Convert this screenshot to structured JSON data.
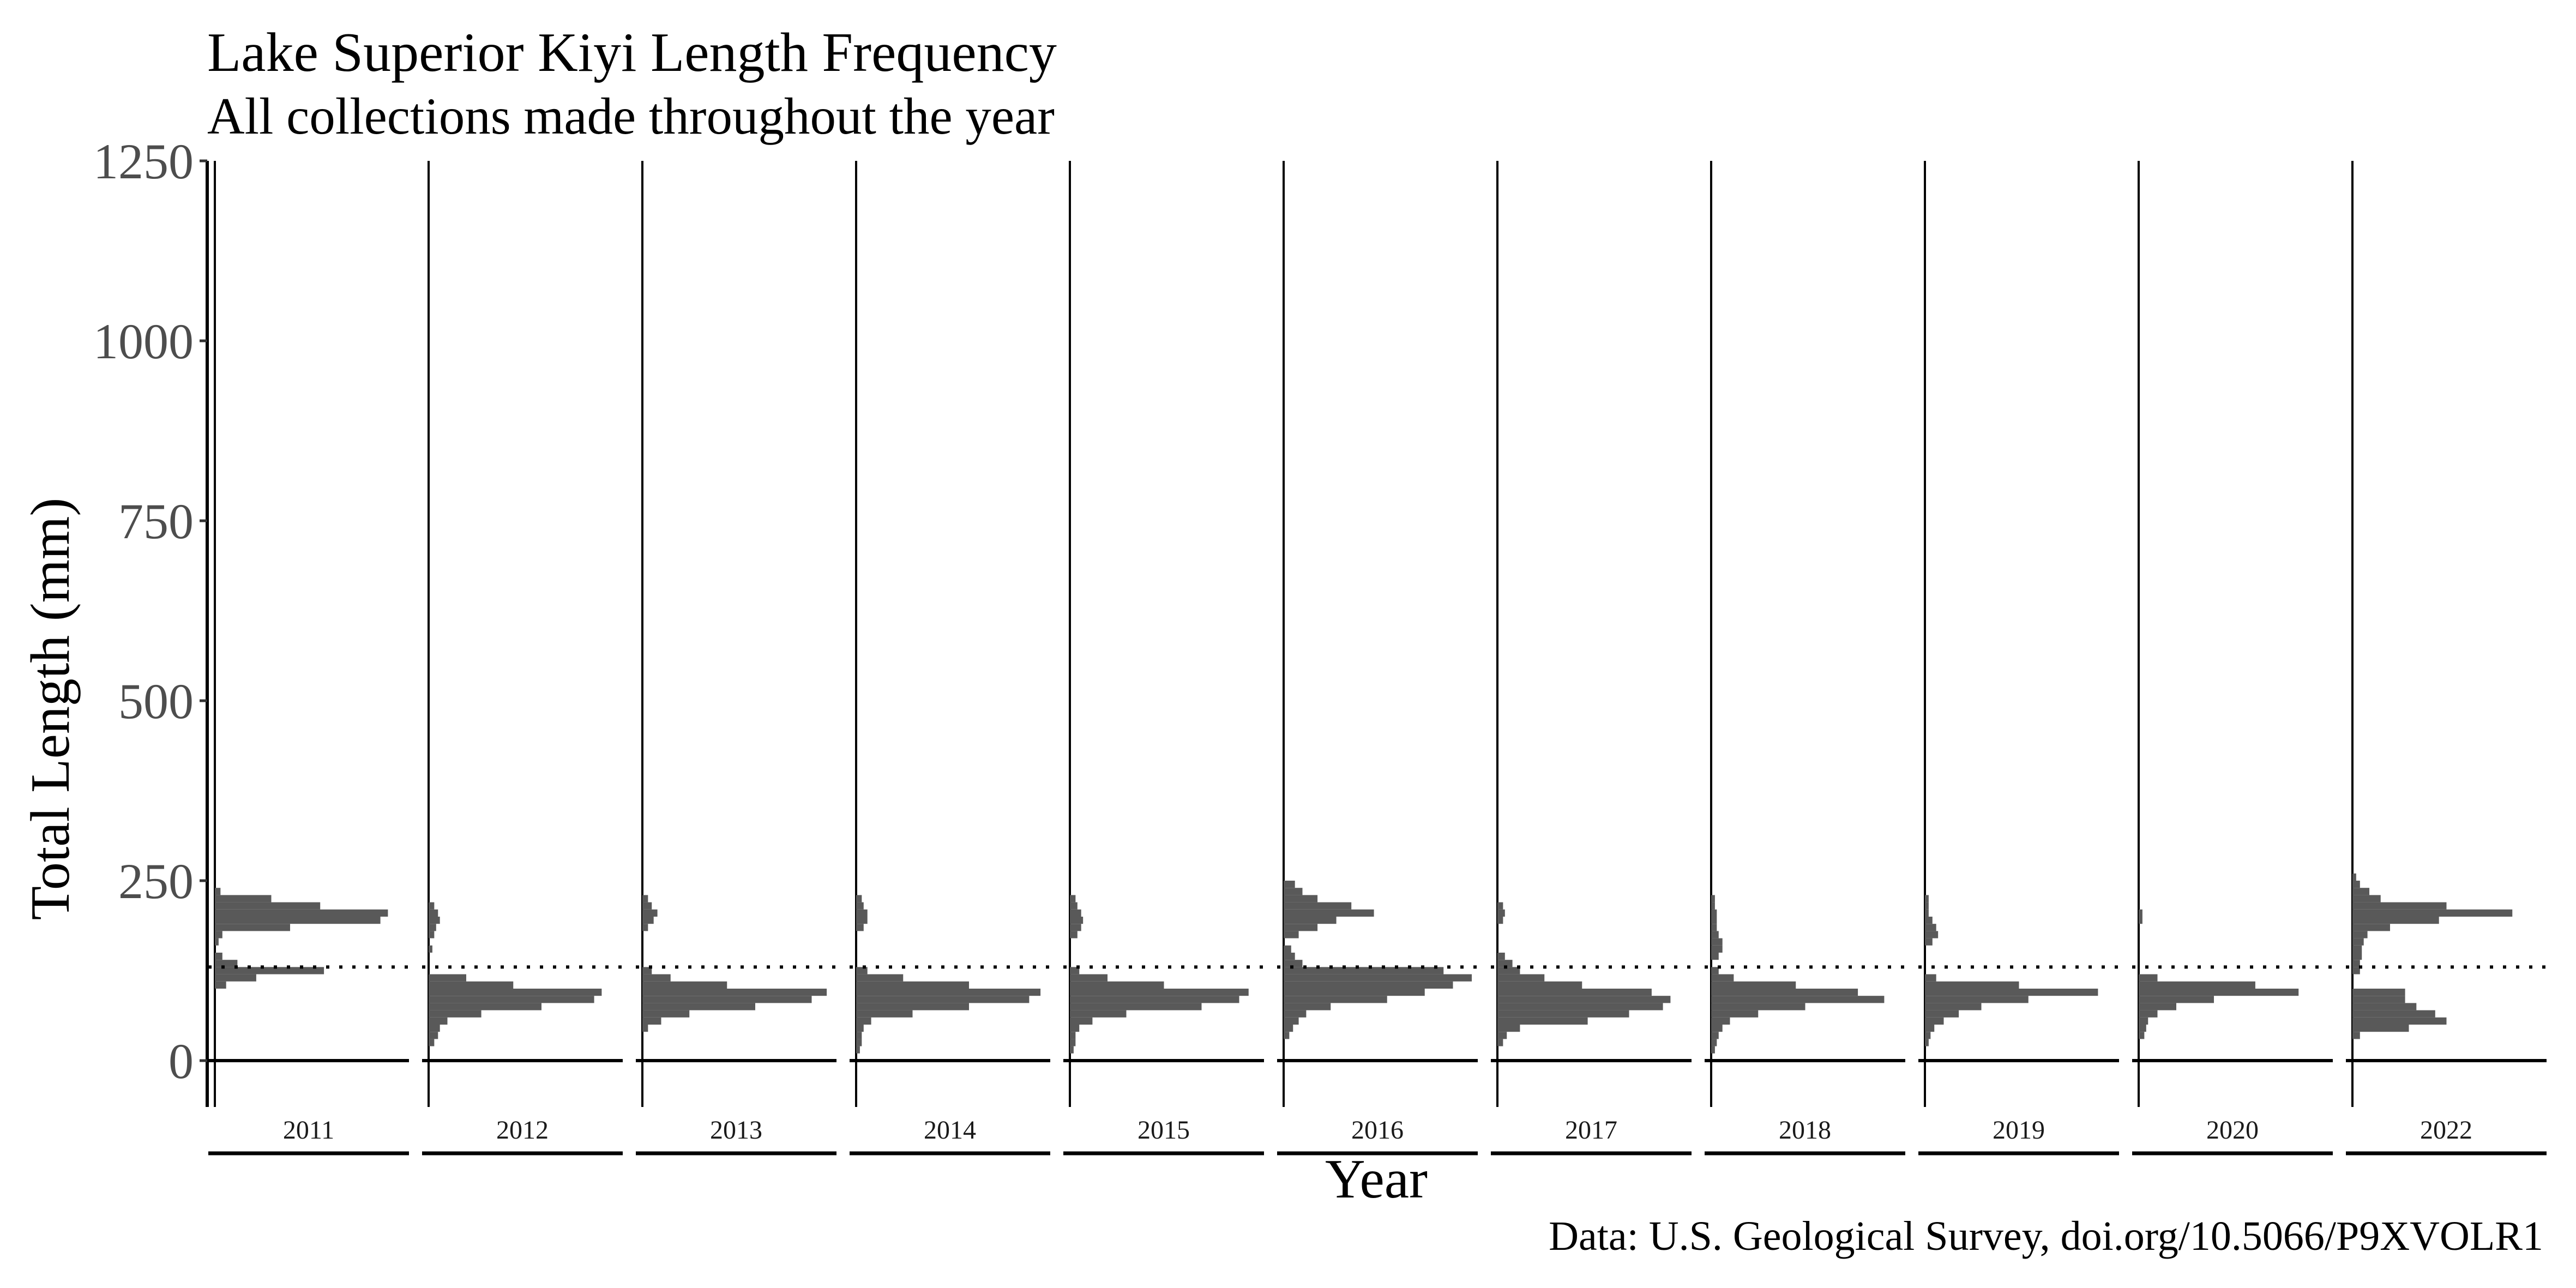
{
  "chart_data": {
    "type": "histogram",
    "orientation": "horizontal",
    "title": "Lake Superior Kiyi Length Frequency",
    "subtitle": "All collections made throughout the year",
    "xlabel": "Year",
    "ylabel": "Total Length (mm)",
    "caption": "Data: U.S. Geological Survey, doi.org/10.5066/P9XVOLR1",
    "ylim": [
      0,
      1250
    ],
    "yticks": [
      0,
      250,
      500,
      750,
      1000,
      1250
    ],
    "reference_line": {
      "y": 130,
      "style": "dotted"
    },
    "bin_width": 10,
    "grid": false,
    "bar_color": "#595959",
    "panels": [
      {
        "year": "2011",
        "bins": [
          [
            100,
            6
          ],
          [
            110,
            22
          ],
          [
            120,
            58
          ],
          [
            130,
            12
          ],
          [
            140,
            4
          ],
          [
            160,
            2
          ],
          [
            170,
            4
          ],
          [
            180,
            40
          ],
          [
            190,
            88
          ],
          [
            200,
            92
          ],
          [
            210,
            56
          ],
          [
            220,
            30
          ],
          [
            230,
            3
          ]
        ]
      },
      {
        "year": "2012",
        "bins": [
          [
            20,
            3
          ],
          [
            30,
            5
          ],
          [
            40,
            6
          ],
          [
            50,
            10
          ],
          [
            60,
            28
          ],
          [
            70,
            60
          ],
          [
            80,
            88
          ],
          [
            90,
            92
          ],
          [
            100,
            45
          ],
          [
            110,
            20
          ],
          [
            150,
            2
          ],
          [
            170,
            3
          ],
          [
            180,
            4
          ],
          [
            190,
            6
          ],
          [
            200,
            5
          ],
          [
            210,
            3
          ]
        ]
      },
      {
        "year": "2013",
        "bins": [
          [
            40,
            3
          ],
          [
            50,
            10
          ],
          [
            60,
            25
          ],
          [
            70,
            60
          ],
          [
            80,
            90
          ],
          [
            90,
            98
          ],
          [
            100,
            45
          ],
          [
            110,
            15
          ],
          [
            120,
            5
          ],
          [
            180,
            3
          ],
          [
            190,
            6
          ],
          [
            200,
            8
          ],
          [
            210,
            5
          ],
          [
            220,
            3
          ]
        ]
      },
      {
        "year": "2014",
        "bins": [
          [
            10,
            2
          ],
          [
            20,
            3
          ],
          [
            30,
            3
          ],
          [
            40,
            4
          ],
          [
            50,
            8
          ],
          [
            60,
            30
          ],
          [
            70,
            60
          ],
          [
            80,
            92
          ],
          [
            90,
            98
          ],
          [
            100,
            60
          ],
          [
            110,
            25
          ],
          [
            120,
            6
          ],
          [
            180,
            4
          ],
          [
            190,
            6
          ],
          [
            200,
            6
          ],
          [
            210,
            4
          ],
          [
            220,
            3
          ]
        ]
      },
      {
        "year": "2015",
        "bins": [
          [
            10,
            2
          ],
          [
            20,
            3
          ],
          [
            30,
            3
          ],
          [
            40,
            5
          ],
          [
            50,
            12
          ],
          [
            60,
            30
          ],
          [
            70,
            70
          ],
          [
            80,
            90
          ],
          [
            90,
            95
          ],
          [
            100,
            50
          ],
          [
            110,
            20
          ],
          [
            120,
            5
          ],
          [
            170,
            4
          ],
          [
            180,
            6
          ],
          [
            190,
            7
          ],
          [
            200,
            6
          ],
          [
            210,
            4
          ],
          [
            220,
            3
          ]
        ]
      },
      {
        "year": "2016",
        "bins": [
          [
            30,
            3
          ],
          [
            40,
            5
          ],
          [
            50,
            8
          ],
          [
            60,
            12
          ],
          [
            70,
            25
          ],
          [
            80,
            55
          ],
          [
            90,
            75
          ],
          [
            100,
            90
          ],
          [
            110,
            100
          ],
          [
            120,
            85
          ],
          [
            130,
            10
          ],
          [
            140,
            6
          ],
          [
            150,
            4
          ],
          [
            170,
            8
          ],
          [
            180,
            18
          ],
          [
            190,
            28
          ],
          [
            200,
            48
          ],
          [
            210,
            36
          ],
          [
            220,
            18
          ],
          [
            230,
            10
          ],
          [
            240,
            6
          ]
        ]
      },
      {
        "year": "2017",
        "bins": [
          [
            20,
            3
          ],
          [
            30,
            5
          ],
          [
            40,
            12
          ],
          [
            50,
            48
          ],
          [
            60,
            70
          ],
          [
            70,
            88
          ],
          [
            80,
            92
          ],
          [
            90,
            82
          ],
          [
            100,
            45
          ],
          [
            110,
            25
          ],
          [
            120,
            12
          ],
          [
            130,
            8
          ],
          [
            140,
            4
          ],
          [
            190,
            3
          ],
          [
            200,
            4
          ],
          [
            210,
            3
          ]
        ]
      },
      {
        "year": "2018",
        "bins": [
          [
            10,
            2
          ],
          [
            20,
            3
          ],
          [
            30,
            4
          ],
          [
            40,
            6
          ],
          [
            50,
            10
          ],
          [
            60,
            25
          ],
          [
            70,
            50
          ],
          [
            80,
            92
          ],
          [
            90,
            78
          ],
          [
            100,
            45
          ],
          [
            110,
            12
          ],
          [
            120,
            4
          ],
          [
            140,
            4
          ],
          [
            150,
            6
          ],
          [
            160,
            6
          ],
          [
            170,
            4
          ],
          [
            180,
            3
          ],
          [
            190,
            3
          ],
          [
            200,
            3
          ],
          [
            210,
            2
          ],
          [
            220,
            2
          ]
        ]
      },
      {
        "year": "2019",
        "bins": [
          [
            20,
            2
          ],
          [
            30,
            3
          ],
          [
            40,
            5
          ],
          [
            50,
            10
          ],
          [
            60,
            18
          ],
          [
            70,
            30
          ],
          [
            80,
            55
          ],
          [
            90,
            92
          ],
          [
            100,
            50
          ],
          [
            110,
            6
          ],
          [
            160,
            4
          ],
          [
            170,
            7
          ],
          [
            180,
            6
          ],
          [
            190,
            4
          ],
          [
            200,
            2
          ],
          [
            210,
            2
          ],
          [
            220,
            2
          ]
        ]
      },
      {
        "year": "2020",
        "bins": [
          [
            30,
            3
          ],
          [
            40,
            4
          ],
          [
            50,
            5
          ],
          [
            60,
            10
          ],
          [
            70,
            20
          ],
          [
            80,
            40
          ],
          [
            90,
            85
          ],
          [
            100,
            62
          ],
          [
            110,
            10
          ],
          [
            190,
            2
          ],
          [
            200,
            2
          ]
        ]
      },
      {
        "year": "2022",
        "bins": [
          [
            30,
            4
          ],
          [
            40,
            30
          ],
          [
            50,
            50
          ],
          [
            60,
            44
          ],
          [
            70,
            34
          ],
          [
            80,
            28
          ],
          [
            90,
            28
          ],
          [
            120,
            4
          ],
          [
            130,
            4
          ],
          [
            140,
            5
          ],
          [
            150,
            5
          ],
          [
            160,
            6
          ],
          [
            170,
            8
          ],
          [
            180,
            20
          ],
          [
            190,
            46
          ],
          [
            200,
            85
          ],
          [
            210,
            50
          ],
          [
            220,
            15
          ],
          [
            230,
            9
          ],
          [
            240,
            4
          ],
          [
            250,
            2
          ]
        ]
      }
    ]
  }
}
